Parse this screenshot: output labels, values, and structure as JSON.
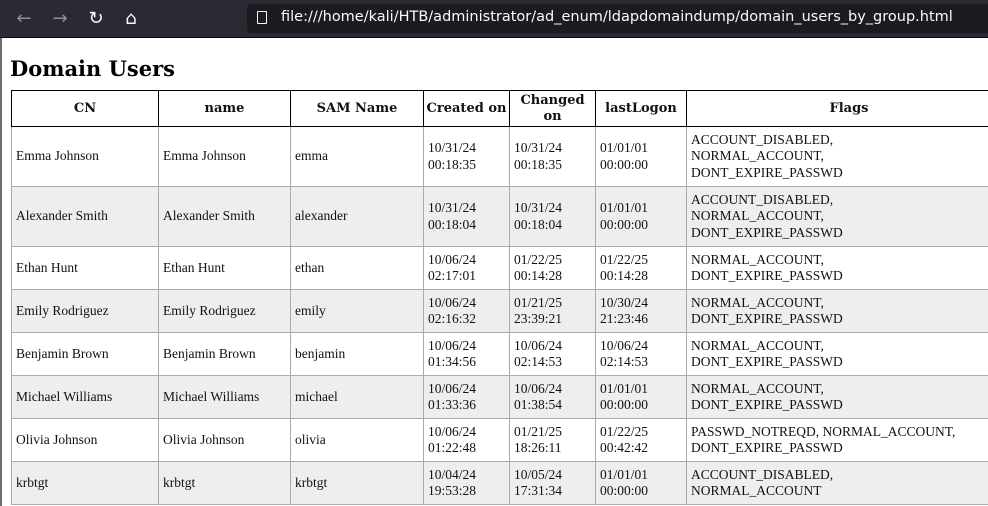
{
  "browser": {
    "url": "file:///home/kali/HTB/administrator/ad_enum/ldapdomaindump/domain_users_by_group.html"
  },
  "page": {
    "title": "Domain Users",
    "columns": [
      "CN",
      "name",
      "SAM Name",
      "Created on",
      "Changed on",
      "lastLogon",
      "Flags"
    ],
    "rows": [
      {
        "cn": "Emma Johnson",
        "name": "Emma Johnson",
        "sam": "emma",
        "created": [
          "10/31/24",
          "00:18:35"
        ],
        "changed": [
          "10/31/24",
          "00:18:35"
        ],
        "lastlogon": [
          "01/01/01",
          "00:00:00"
        ],
        "flags": [
          "ACCOUNT_DISABLED,",
          "NORMAL_ACCOUNT,",
          "DONT_EXPIRE_PASSWD"
        ]
      },
      {
        "cn": "Alexander Smith",
        "name": "Alexander Smith",
        "sam": "alexander",
        "created": [
          "10/31/24",
          "00:18:04"
        ],
        "changed": [
          "10/31/24",
          "00:18:04"
        ],
        "lastlogon": [
          "01/01/01",
          "00:00:00"
        ],
        "flags": [
          "ACCOUNT_DISABLED,",
          "NORMAL_ACCOUNT,",
          "DONT_EXPIRE_PASSWD"
        ]
      },
      {
        "cn": "Ethan Hunt",
        "name": "Ethan Hunt",
        "sam": "ethan",
        "created": [
          "10/06/24",
          "02:17:01"
        ],
        "changed": [
          "01/22/25",
          "00:14:28"
        ],
        "lastlogon": [
          "01/22/25",
          "00:14:28"
        ],
        "flags": [
          "NORMAL_ACCOUNT,",
          "DONT_EXPIRE_PASSWD"
        ]
      },
      {
        "cn": "Emily Rodriguez",
        "name": "Emily Rodriguez",
        "sam": "emily",
        "created": [
          "10/06/24",
          "02:16:32"
        ],
        "changed": [
          "01/21/25",
          "23:39:21"
        ],
        "lastlogon": [
          "10/30/24",
          "21:23:46"
        ],
        "flags": [
          "NORMAL_ACCOUNT,",
          "DONT_EXPIRE_PASSWD"
        ]
      },
      {
        "cn": "Benjamin Brown",
        "name": "Benjamin Brown",
        "sam": "benjamin",
        "created": [
          "10/06/24",
          "01:34:56"
        ],
        "changed": [
          "10/06/24",
          "02:14:53"
        ],
        "lastlogon": [
          "10/06/24",
          "02:14:53"
        ],
        "flags": [
          "NORMAL_ACCOUNT,",
          "DONT_EXPIRE_PASSWD"
        ]
      },
      {
        "cn": "Michael Williams",
        "name": "Michael Williams",
        "sam": "michael",
        "created": [
          "10/06/24",
          "01:33:36"
        ],
        "changed": [
          "10/06/24",
          "01:38:54"
        ],
        "lastlogon": [
          "01/01/01",
          "00:00:00"
        ],
        "flags": [
          "NORMAL_ACCOUNT,",
          "DONT_EXPIRE_PASSWD"
        ]
      },
      {
        "cn": "Olivia Johnson",
        "name": "Olivia Johnson",
        "sam": "olivia",
        "created": [
          "10/06/24",
          "01:22:48"
        ],
        "changed": [
          "01/21/25",
          "18:26:11"
        ],
        "lastlogon": [
          "01/22/25",
          "00:42:42"
        ],
        "flags": [
          "PASSWD_NOTREQD, NORMAL_ACCOUNT,",
          "DONT_EXPIRE_PASSWD"
        ]
      },
      {
        "cn": "krbtgt",
        "name": "krbtgt",
        "sam": "krbtgt",
        "created": [
          "10/04/24",
          "19:53:28"
        ],
        "changed": [
          "10/05/24",
          "17:31:34"
        ],
        "lastlogon": [
          "01/01/01",
          "00:00:00"
        ],
        "flags": [
          "ACCOUNT_DISABLED,",
          "NORMAL_ACCOUNT"
        ]
      }
    ]
  }
}
